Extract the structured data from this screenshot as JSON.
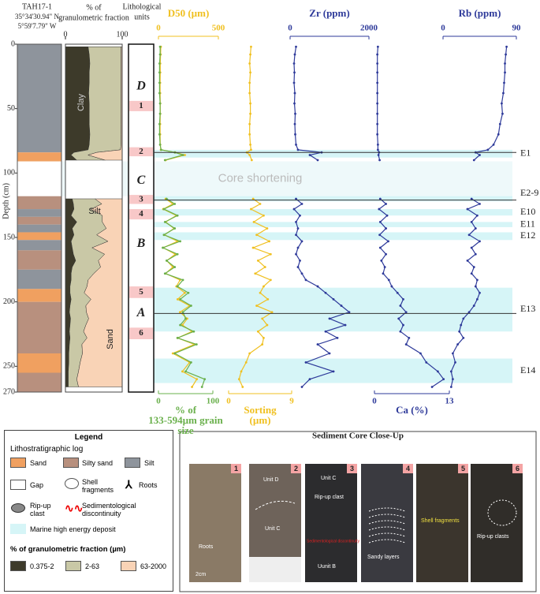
{
  "header": {
    "core": "TAH17-1",
    "lat": "35°34'30.94\" N",
    "lon": "5°59'7.79\" W",
    "units_title": [
      "Lithological",
      "units"
    ]
  },
  "depth_axis": {
    "label": "Depth (cm)",
    "ylim": [
      0,
      270
    ],
    "yticks": [
      0,
      50,
      100,
      150,
      200,
      250,
      270
    ]
  },
  "lithology": [
    {
      "top": 0,
      "bottom": 84,
      "color": "#8e949c"
    },
    {
      "top": 84,
      "bottom": 91,
      "color": "#f0a060"
    },
    {
      "top": 91,
      "bottom": 118,
      "color": "#ffffff"
    },
    {
      "top": 118,
      "bottom": 128,
      "color": "#b8907e"
    },
    {
      "top": 128,
      "bottom": 134,
      "color": "#8e949c"
    },
    {
      "top": 134,
      "bottom": 140,
      "color": "#b8907e"
    },
    {
      "top": 140,
      "bottom": 146,
      "color": "#8e949c"
    },
    {
      "top": 146,
      "bottom": 152,
      "color": "#f0a060"
    },
    {
      "top": 152,
      "bottom": 160,
      "color": "#8e949c"
    },
    {
      "top": 160,
      "bottom": 175,
      "color": "#b8907e"
    },
    {
      "top": 175,
      "bottom": 190,
      "color": "#8e949c"
    },
    {
      "top": 190,
      "bottom": 200,
      "color": "#f0a060"
    },
    {
      "top": 200,
      "bottom": 240,
      "color": "#b8907e"
    },
    {
      "top": 240,
      "bottom": 255,
      "color": "#f0a060"
    },
    {
      "top": 255,
      "bottom": 270,
      "color": "#b8907e"
    }
  ],
  "gap": {
    "label": "Core shortening",
    "top": 91,
    "bottom": 118
  },
  "units": [
    {
      "label": "D",
      "depth": 33
    },
    {
      "label": "1",
      "top": 44,
      "bottom": 52
    },
    {
      "label": "2",
      "top": 80,
      "bottom": 87
    },
    {
      "label": "C",
      "depth": 106
    },
    {
      "label": "3",
      "top": 117,
      "bottom": 124
    },
    {
      "label": "4",
      "top": 128,
      "bottom": 136
    },
    {
      "label": "B",
      "depth": 155
    },
    {
      "label": "5",
      "top": 188,
      "bottom": 197
    },
    {
      "label": "A",
      "depth": 209
    },
    {
      "label": "6",
      "top": 220,
      "bottom": 229
    }
  ],
  "events": [
    {
      "label": "E1",
      "top": 82,
      "bottom": 88
    },
    {
      "label": "E2-9",
      "top": 110,
      "bottom": 122
    },
    {
      "label": "E10",
      "top": 128,
      "bottom": 133
    },
    {
      "label": "E11",
      "top": 138,
      "bottom": 142
    },
    {
      "label": "E12",
      "top": 146,
      "bottom": 152
    },
    {
      "label": "E13",
      "top": 189,
      "bottom": 223
    },
    {
      "label": "E14",
      "top": 244,
      "bottom": 263
    }
  ],
  "boundaries": [
    84,
    121,
    209
  ],
  "chart_data": [
    {
      "type": "stacked_profile",
      "title": [
        "% of",
        "granulometric fraction"
      ],
      "xlim": [
        0,
        100
      ],
      "xticks": [
        0,
        100
      ],
      "axis_side": "top",
      "area_labels": [
        "Clay",
        "Silt",
        "Sand"
      ],
      "depth": [
        2,
        8,
        15,
        22,
        30,
        38,
        46,
        54,
        62,
        70,
        78,
        82,
        84,
        86,
        90,
        100,
        120,
        124,
        128,
        133,
        138,
        143,
        148,
        153,
        158,
        163,
        168,
        173,
        178,
        183,
        188,
        193,
        198,
        203,
        208,
        213,
        218,
        223,
        228,
        233,
        240,
        247,
        254,
        260,
        266
      ],
      "series": [
        {
          "name": "0.375-2",
          "color": "#3d3a2a",
          "values": [
            40,
            42,
            43,
            42,
            42,
            41,
            42,
            42,
            42,
            43,
            42,
            40,
            15,
            10,
            20,
            null,
            12,
            14,
            15,
            10,
            20,
            12,
            15,
            10,
            12,
            14,
            18,
            12,
            10,
            10,
            8,
            8,
            10,
            8,
            7,
            9,
            8,
            7,
            8,
            7,
            6,
            6,
            5,
            5,
            5
          ]
        },
        {
          "name": "2-63",
          "color": "#c9c8a6",
          "values": [
            58,
            56,
            55,
            56,
            56,
            57,
            56,
            56,
            56,
            55,
            56,
            57,
            40,
            30,
            50,
            null,
            40,
            50,
            30,
            55,
            45,
            60,
            40,
            65,
            35,
            55,
            40,
            50,
            40,
            30,
            30,
            25,
            35,
            28,
            30,
            32,
            28,
            25,
            30,
            22,
            24,
            20,
            18,
            15,
            18
          ]
        },
        {
          "name": "63-2000",
          "color": "#f9d3b6",
          "values": [
            2,
            2,
            2,
            2,
            2,
            2,
            2,
            2,
            2,
            2,
            2,
            3,
            45,
            60,
            30,
            null,
            48,
            36,
            55,
            35,
            35,
            28,
            45,
            25,
            53,
            31,
            42,
            38,
            50,
            60,
            62,
            67,
            55,
            64,
            63,
            59,
            64,
            68,
            62,
            71,
            70,
            74,
            77,
            80,
            77
          ]
        }
      ]
    },
    {
      "type": "profile",
      "title": "D50 (µm)",
      "xlim": [
        0,
        500
      ],
      "xticks": [
        0,
        500
      ],
      "axis_side": "top",
      "color": "#f0c020",
      "depth": [
        2,
        8,
        15,
        22,
        30,
        38,
        46,
        54,
        62,
        70,
        78,
        82,
        84,
        86,
        90,
        100,
        120,
        124,
        128,
        133,
        138,
        143,
        148,
        153,
        158,
        163,
        168,
        173,
        178,
        183,
        188,
        193,
        198,
        203,
        208,
        213,
        218,
        223,
        228,
        233,
        240,
        247,
        254,
        260,
        266
      ],
      "values": [
        20,
        18,
        15,
        15,
        14,
        14,
        15,
        15,
        14,
        14,
        15,
        20,
        140,
        220,
        60,
        null,
        60,
        120,
        40,
        150,
        60,
        130,
        50,
        160,
        40,
        140,
        70,
        120,
        60,
        180,
        150,
        220,
        160,
        260,
        180,
        240,
        200,
        280,
        160,
        300,
        120,
        260,
        200,
        320,
        280
      ]
    },
    {
      "type": "profile",
      "title": [
        "% of",
        "133-594µm grain",
        "size"
      ],
      "xlim": [
        0,
        100
      ],
      "xticks": [
        0,
        100
      ],
      "axis_side": "bottom",
      "color": "#6ab04c",
      "depth": [
        2,
        8,
        15,
        22,
        30,
        38,
        46,
        54,
        62,
        70,
        78,
        82,
        84,
        86,
        90,
        100,
        120,
        124,
        128,
        133,
        138,
        143,
        148,
        153,
        158,
        163,
        168,
        173,
        178,
        183,
        188,
        193,
        198,
        203,
        208,
        213,
        218,
        223,
        228,
        233,
        240,
        247,
        254,
        260,
        266
      ],
      "values": [
        3,
        3,
        2,
        2,
        2,
        2,
        3,
        3,
        2,
        2,
        3,
        5,
        30,
        45,
        12,
        null,
        15,
        30,
        10,
        35,
        12,
        30,
        10,
        40,
        8,
        35,
        15,
        30,
        12,
        45,
        35,
        55,
        40,
        60,
        45,
        50,
        40,
        65,
        35,
        70,
        30,
        60,
        50,
        85,
        80
      ]
    },
    {
      "type": "profile",
      "title": [
        "Sorting",
        "(µm)"
      ],
      "xlim": [
        0,
        9
      ],
      "xticks": [
        0,
        9
      ],
      "axis_side": "bottom",
      "color": "#f0c020",
      "depth": [
        2,
        8,
        15,
        22,
        30,
        38,
        46,
        54,
        62,
        70,
        78,
        82,
        84,
        86,
        90,
        100,
        120,
        124,
        128,
        133,
        138,
        143,
        148,
        153,
        158,
        163,
        168,
        173,
        178,
        183,
        188,
        193,
        198,
        203,
        208,
        213,
        218,
        223,
        228,
        233,
        240,
        247,
        254,
        260,
        266
      ],
      "values": [
        3.2,
        3.1,
        3.0,
        3.1,
        3.0,
        3.0,
        3.1,
        3.1,
        3.0,
        3.0,
        3.1,
        3.2,
        2.6,
        3.0,
        3.3,
        null,
        3.5,
        4.5,
        3.2,
        5.0,
        3.6,
        5.5,
        4.0,
        5.8,
        3.5,
        6.0,
        4.2,
        5.2,
        3.8,
        6.0,
        5.0,
        4.5,
        5.6,
        4.0,
        6.2,
        4.8,
        5.5,
        4.2,
        5.0,
        4.8,
        3.0,
        2.5,
        1.8,
        1.5,
        2.0
      ]
    },
    {
      "type": "profile",
      "title": "Zr (ppm)",
      "xlim": [
        0,
        2000
      ],
      "xticks": [
        0,
        2000
      ],
      "axis_side": "top",
      "color": "#2e3a9a",
      "depth": [
        2,
        8,
        15,
        22,
        30,
        38,
        46,
        54,
        62,
        70,
        78,
        82,
        84,
        86,
        90,
        100,
        120,
        124,
        128,
        133,
        138,
        143,
        148,
        153,
        158,
        163,
        168,
        173,
        178,
        183,
        188,
        193,
        198,
        203,
        208,
        213,
        218,
        223,
        228,
        233,
        240,
        247,
        254,
        260,
        266
      ],
      "values": [
        150,
        120,
        100,
        110,
        100,
        120,
        110,
        130,
        120,
        130,
        150,
        200,
        800,
        500,
        700,
        null,
        150,
        300,
        100,
        250,
        150,
        200,
        150,
        300,
        200,
        150,
        250,
        200,
        300,
        400,
        700,
        900,
        1100,
        1300,
        1500,
        1000,
        1400,
        900,
        1200,
        700,
        1000,
        400,
        1100,
        500,
        300
      ]
    },
    {
      "type": "profile",
      "title": "Ca (%)",
      "xlim": [
        0,
        13
      ],
      "xticks": [
        0,
        13
      ],
      "axis_side": "bottom",
      "color": "#2e3a9a",
      "depth": [
        2,
        8,
        15,
        22,
        30,
        38,
        46,
        54,
        62,
        70,
        78,
        82,
        84,
        86,
        90,
        100,
        120,
        124,
        128,
        133,
        138,
        143,
        148,
        153,
        158,
        163,
        168,
        173,
        178,
        183,
        188,
        193,
        198,
        203,
        208,
        213,
        218,
        223,
        228,
        233,
        240,
        247,
        254,
        260,
        266
      ],
      "values": [
        0.6,
        0.5,
        0.5,
        0.5,
        0.5,
        0.5,
        0.5,
        0.5,
        0.5,
        0.5,
        0.6,
        0.6,
        0.8,
        0.7,
        0.9,
        null,
        1.0,
        2.0,
        0.8,
        2.2,
        1.0,
        2.0,
        0.9,
        2.4,
        1.0,
        2.0,
        1.2,
        1.8,
        1.5,
        2.5,
        3.0,
        4.0,
        5.0,
        4.5,
        5.5,
        4.2,
        5.0,
        4.5,
        6.0,
        5.5,
        8.0,
        9.0,
        11.0,
        12.0,
        10.0
      ]
    },
    {
      "type": "profile",
      "title": "Rb (ppm)",
      "xlim": [
        0,
        90
      ],
      "xticks": [
        0,
        90
      ],
      "axis_side": "top",
      "color": "#2e3a9a",
      "depth": [
        2,
        8,
        15,
        22,
        30,
        38,
        46,
        54,
        62,
        70,
        78,
        82,
        84,
        86,
        90,
        100,
        120,
        124,
        128,
        133,
        138,
        143,
        148,
        153,
        158,
        163,
        168,
        173,
        178,
        183,
        188,
        193,
        198,
        203,
        208,
        213,
        218,
        223,
        228,
        233,
        240,
        247,
        254,
        260,
        266
      ],
      "values": [
        78,
        77,
        76,
        76,
        75,
        74,
        72,
        73,
        70,
        68,
        62,
        55,
        40,
        45,
        38,
        null,
        35,
        45,
        30,
        42,
        35,
        40,
        32,
        45,
        35,
        40,
        30,
        38,
        35,
        42,
        40,
        45,
        42,
        38,
        32,
        25,
        22,
        20,
        25,
        18,
        12,
        15,
        10,
        12,
        10
      ]
    }
  ],
  "legend": {
    "title": "Legend",
    "log_title": "Lithostratigraphic log",
    "items": [
      "Sand",
      "Silty sand",
      "Silt",
      "Gap",
      "Shell fragments",
      "Roots",
      "Rip-up clast",
      "Sedimentological discontinuity",
      "Marine high energy deposit"
    ],
    "fraction_title": "% of granulometric fraction (µm)"
  },
  "closeup": {
    "title": "Sediment Core Close-Up",
    "panels": [
      {
        "number": "1",
        "texts": [
          "Roots",
          "2cm"
        ]
      },
      {
        "number": "2",
        "texts": [
          "Unit D",
          "Unit C"
        ]
      },
      {
        "number": "3",
        "texts": [
          "Unit C",
          "Rip-up clast",
          "Sedimentological discontinuity",
          "Uunit B"
        ]
      },
      {
        "number": "4",
        "texts": [
          "Sandy layers"
        ]
      },
      {
        "number": "5",
        "texts": [
          "Shell fragments"
        ]
      },
      {
        "number": "6",
        "texts": [
          "Rip-up clasts"
        ]
      }
    ]
  }
}
